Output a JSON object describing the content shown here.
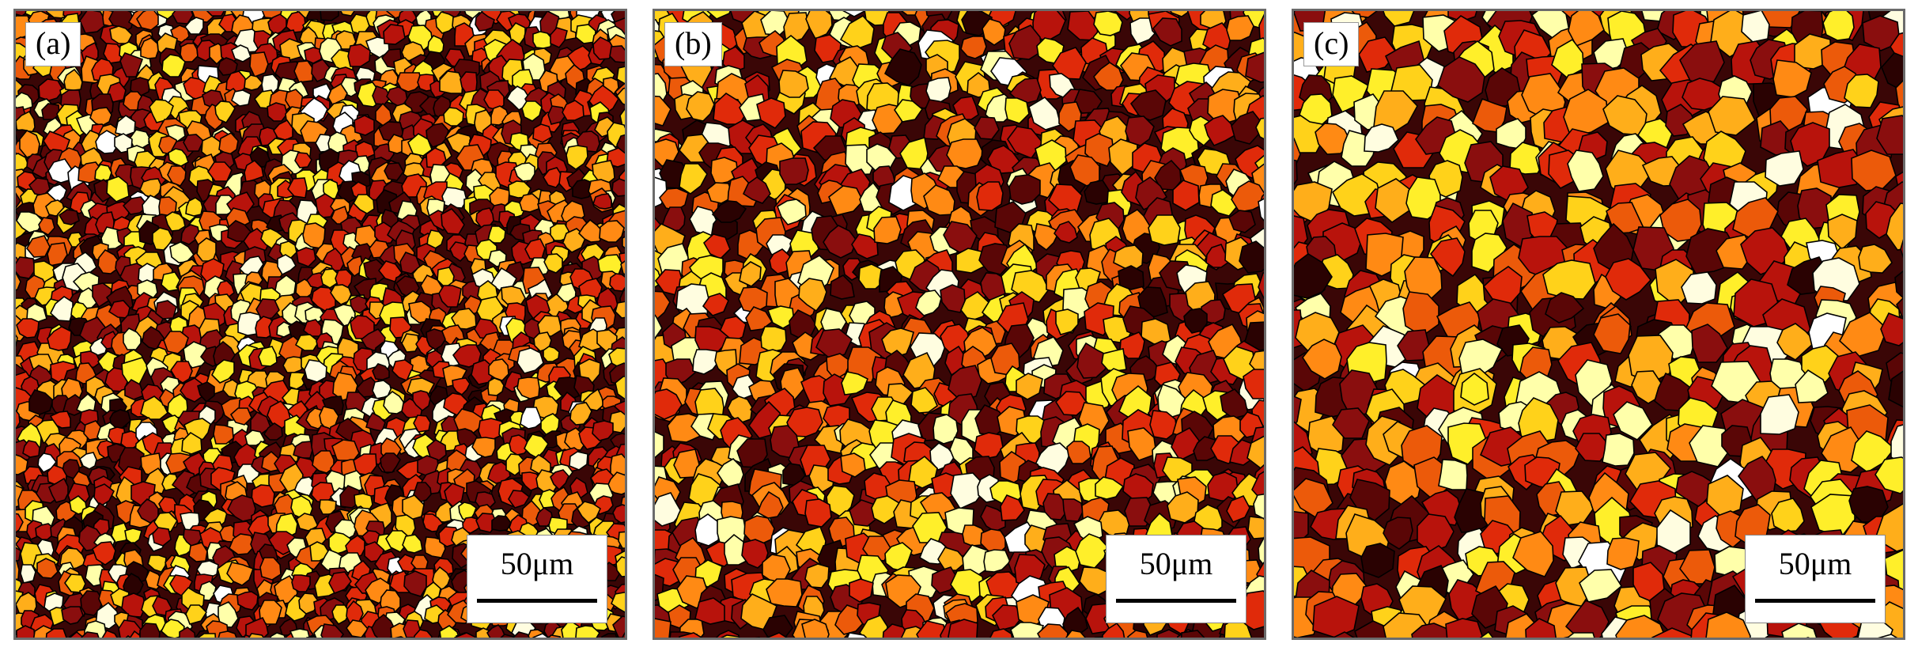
{
  "panels": [
    {
      "label": "(a)",
      "scale_bar_text": "50μm",
      "grain_size": "fine"
    },
    {
      "label": "(b)",
      "scale_bar_text": "50μm",
      "grain_size": "medium"
    },
    {
      "label": "(c)",
      "scale_bar_text": "50μm",
      "grain_size": "coarse"
    }
  ],
  "palette": [
    "#fffde0",
    "#ffffaa",
    "#ffef2a",
    "#ffd21a",
    "#ffae1a",
    "#ff8a14",
    "#ec5a0a",
    "#e02a0a",
    "#b8130c",
    "#8a0e0e",
    "#5a0606",
    "#2a0202",
    "#ffffff"
  ],
  "boundary_color": "#000000"
}
